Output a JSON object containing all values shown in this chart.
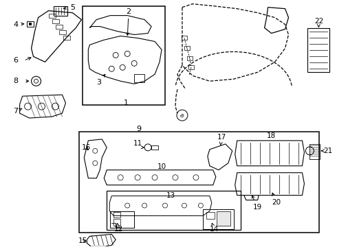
{
  "bg_color": "#ffffff",
  "fig_width": 4.9,
  "fig_height": 3.6,
  "dpi": 100,
  "line_color": "#000000",
  "text_color": "#000000",
  "font_size": 7.0
}
